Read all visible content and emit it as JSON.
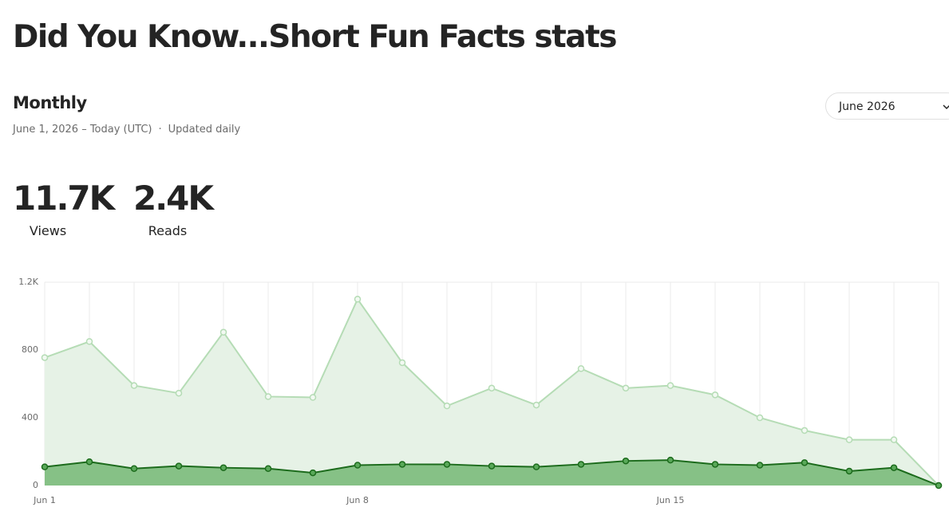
{
  "header": {
    "title": "Did You Know...Short Fun Facts stats"
  },
  "period": {
    "heading": "Monthly",
    "range": "June 1, 2026 – Today (UTC)",
    "separator": "·",
    "update": "Updated daily",
    "selector": "June 2026"
  },
  "stats": [
    {
      "value": "11.7K",
      "label": "Views"
    },
    {
      "value": "2.4K",
      "label": "Reads"
    }
  ],
  "chart_data": {
    "type": "area",
    "categories": [
      "Jun 1",
      null,
      null,
      null,
      null,
      null,
      null,
      "Jun 8",
      null,
      null,
      null,
      null,
      null,
      null,
      "Jun 15",
      null,
      null,
      null,
      null,
      null,
      null
    ],
    "series": [
      {
        "color": "#b5dcb5",
        "fill": "#e6f2e6",
        "values": [
          755,
          850,
          590,
          545,
          905,
          525,
          520,
          1100,
          725,
          470,
          575,
          475,
          690,
          575,
          590,
          535,
          400,
          325,
          270,
          270,
          0
        ]
      },
      {
        "color": "#1c6b1c",
        "fill": "#86c186",
        "values": [
          110,
          140,
          100,
          115,
          105,
          100,
          75,
          120,
          125,
          125,
          115,
          110,
          125,
          145,
          150,
          125,
          120,
          135,
          85,
          105,
          0
        ]
      }
    ],
    "ylim": [
      0,
      1200
    ],
    "yticks": [
      0,
      400,
      800,
      {
        "value": 1200,
        "label": "1.2K"
      }
    ],
    "grid": true
  }
}
